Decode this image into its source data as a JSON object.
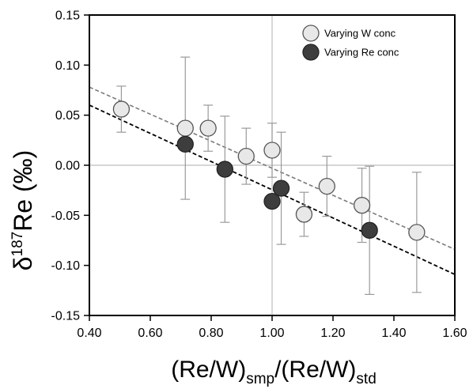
{
  "chart_data": {
    "type": "scatter",
    "title": "",
    "xlabel": {
      "main": "(Re/W)",
      "sub1": "smp",
      "mid": "/(Re/W)",
      "sub2": "std"
    },
    "ylabel": {
      "pre": "δ",
      "sup": "187",
      "post": "Re (‰)"
    },
    "xlim": [
      0.4,
      1.6
    ],
    "ylim": [
      -0.15,
      0.15
    ],
    "x_ticks": [
      0.4,
      0.6,
      0.8,
      1.0,
      1.2,
      1.4,
      1.6
    ],
    "x_tick_labels": [
      "0.40",
      "0.60",
      "0.80",
      "1.00",
      "1.20",
      "1.40",
      "1.60"
    ],
    "y_ticks": [
      -0.15,
      -0.1,
      -0.05,
      0.0,
      0.05,
      0.1,
      0.15
    ],
    "y_tick_labels": [
      "-0.15",
      "-0.10",
      "-0.05",
      "0.00",
      "0.05",
      "0.10",
      "0.15"
    ],
    "reference_lines": {
      "x": 1.0,
      "y": 0.0
    },
    "legend_position": "top-right",
    "series": [
      {
        "name": "Varying W conc",
        "color": "#e8e8e8",
        "points": [
          {
            "x": 0.505,
            "y": 0.056,
            "err": 0.023
          },
          {
            "x": 0.715,
            "y": 0.037,
            "err": 0.071
          },
          {
            "x": 0.79,
            "y": 0.037,
            "err": 0.023
          },
          {
            "x": 0.915,
            "y": 0.009,
            "err": 0.028
          },
          {
            "x": 1.0,
            "y": 0.015,
            "err": 0.027
          },
          {
            "x": 1.105,
            "y": -0.049,
            "err": 0.022
          },
          {
            "x": 1.18,
            "y": -0.021,
            "err": 0.03
          },
          {
            "x": 1.295,
            "y": -0.04,
            "err": 0.037
          },
          {
            "x": 1.475,
            "y": -0.067,
            "err": 0.06
          }
        ],
        "fit": {
          "x": [
            0.4,
            1.6
          ],
          "y": [
            0.078,
            -0.084
          ]
        }
      },
      {
        "name": "Varying Re conc",
        "color": "#3d3d3d",
        "points": [
          {
            "x": 0.715,
            "y": 0.021,
            "err": 0.0
          },
          {
            "x": 0.845,
            "y": -0.004,
            "err": 0.053
          },
          {
            "x": 1.0,
            "y": -0.036,
            "err": 0.0
          },
          {
            "x": 1.03,
            "y": -0.023,
            "err": 0.056
          },
          {
            "x": 1.32,
            "y": -0.065,
            "err": 0.064
          }
        ],
        "fit": {
          "x": [
            0.4,
            1.6
          ],
          "y": [
            0.06,
            -0.109
          ]
        }
      }
    ]
  }
}
